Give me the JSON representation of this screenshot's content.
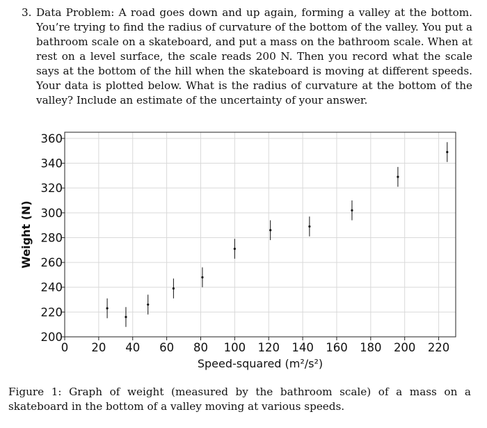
{
  "problem": {
    "number": "3.",
    "text": "Data Problem: A road goes down and up again, forming a valley at the bottom. You’re trying to find the radius of curvature of the bottom of the valley. You put a bathroom scale on a skateboard, and put a mass on the bathroom scale. When at rest on a level surface, the scale reads 200 N. Then you record what the scale says at the bottom of the hill when the skateboard is moving at different speeds. Your data is plotted below. What is the radius of curvature at the bottom of the valley? Include an estimate of the uncertainty of your answer."
  },
  "caption": "Figure 1: Graph of weight (measured by the bathroom scale) of a mass on a skateboard in the bottom of a valley moving at various speeds.",
  "chart_data": {
    "type": "scatter",
    "title": "",
    "xlabel": "Speed-squared (m²/s²)",
    "ylabel": "Weight (N)",
    "xlim": [
      0,
      230
    ],
    "ylim": [
      200,
      365
    ],
    "x_ticks": [
      0,
      20,
      40,
      60,
      80,
      100,
      120,
      140,
      160,
      180,
      200,
      220
    ],
    "y_ticks": [
      200,
      220,
      240,
      260,
      280,
      300,
      320,
      340,
      360
    ],
    "grid": true,
    "error_bars": true,
    "points": [
      {
        "x": 25,
        "y": 223,
        "err": 8
      },
      {
        "x": 36,
        "y": 216,
        "err": 8
      },
      {
        "x": 49,
        "y": 226,
        "err": 8
      },
      {
        "x": 64,
        "y": 239,
        "err": 8
      },
      {
        "x": 81,
        "y": 248,
        "err": 8
      },
      {
        "x": 100,
        "y": 271,
        "err": 8
      },
      {
        "x": 121,
        "y": 286,
        "err": 8
      },
      {
        "x": 144,
        "y": 289,
        "err": 8
      },
      {
        "x": 169,
        "y": 302,
        "err": 8
      },
      {
        "x": 196,
        "y": 329,
        "err": 8
      },
      {
        "x": 225,
        "y": 349,
        "err": 8
      }
    ]
  }
}
